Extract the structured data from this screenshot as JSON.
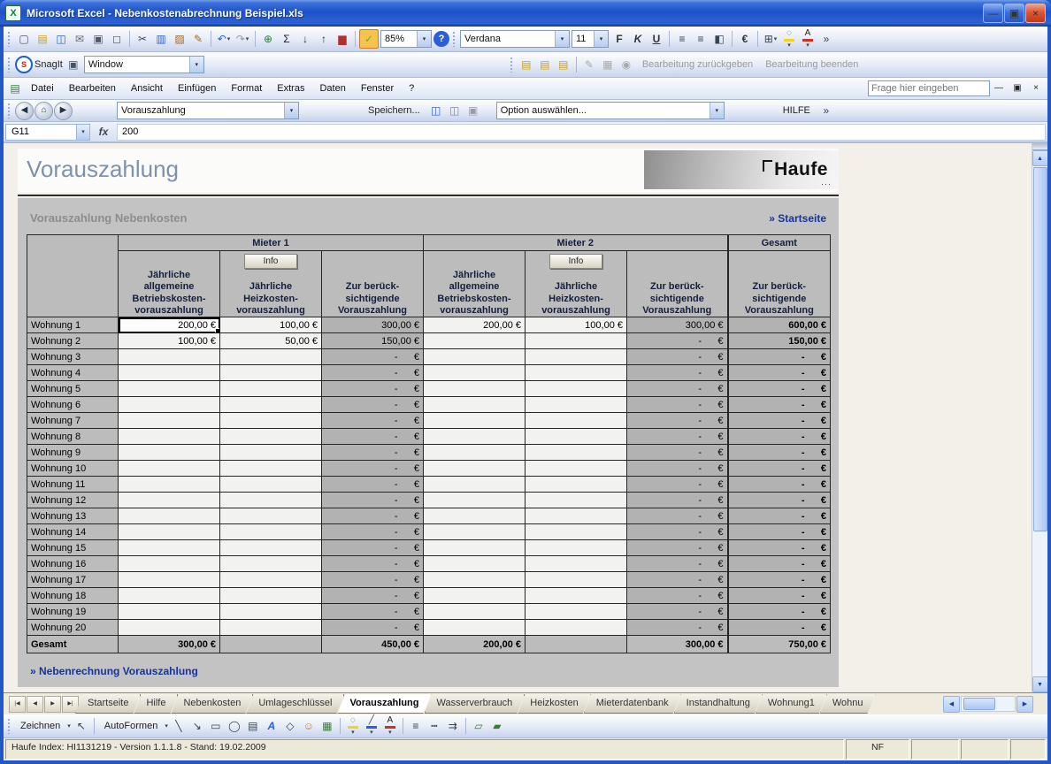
{
  "window": {
    "title": "Microsoft Excel - Nebenkostenabrechnung Beispiel.xls"
  },
  "menus": [
    "Datei",
    "Bearbeiten",
    "Ansicht",
    "Einfügen",
    "Format",
    "Extras",
    "Daten",
    "Fenster",
    "?"
  ],
  "question_placeholder": "Frage hier eingeben",
  "snagit": {
    "label": "SnagIt",
    "profile": "Window"
  },
  "addin_buttons": {
    "b1": "Bearbeitung zurückgeben",
    "b2": "Bearbeitung beenden"
  },
  "custom": {
    "nav_combo": "Vorauszahlung",
    "save_label": "Speichern...",
    "option_combo": "Option auswählen...",
    "help_label": "HILFE"
  },
  "format": {
    "font": "Verdana",
    "size": "11",
    "zoom": "85%"
  },
  "formula": {
    "name_box": "G11",
    "value": "200"
  },
  "content": {
    "page_title": "Vorauszahlung",
    "logo_text": "Haufe",
    "section_title": "Vorauszahlung Nebenkosten",
    "startseite_link": "» Startseite",
    "footer_link": "» Nebenrechnung Vorauszahlung"
  },
  "table": {
    "groups": [
      "Mieter 1",
      "Mieter 2",
      "Gesamt"
    ],
    "info_button": "Info",
    "col_headers": [
      "Jährliche\nallgemeine\nBetriebskosten-\nvorauszahlung",
      "Jährliche\nHeizkosten-\nvorauszahlung",
      "Zur berück-\nsichtigende\nVorauszahlung",
      "Jährliche\nallgemeine\nBetriebskosten-\nvorauszahlung",
      "Jährliche\nHeizkosten-\nvorauszahlung",
      "Zur berück-\nsichtigende\nVorauszahlung",
      "Zur berück-\nsichtigende\nVorauszahlung"
    ],
    "rows": [
      {
        "label": "Wohnung 1",
        "values": [
          "200,00 €",
          "100,00 €",
          "300,00 €",
          "200,00 €",
          "100,00 €",
          "300,00 €",
          "600,00 €"
        ]
      },
      {
        "label": "Wohnung 2",
        "values": [
          "100,00 €",
          "50,00 €",
          "150,00 €",
          "",
          "",
          "-      €",
          "150,00 €"
        ]
      },
      {
        "label": "Wohnung 3",
        "values": [
          "",
          "",
          "-      €",
          "",
          "",
          "-      €",
          "-      €"
        ]
      },
      {
        "label": "Wohnung 4",
        "values": [
          "",
          "",
          "-      €",
          "",
          "",
          "-      €",
          "-      €"
        ]
      },
      {
        "label": "Wohnung 5",
        "values": [
          "",
          "",
          "-      €",
          "",
          "",
          "-      €",
          "-      €"
        ]
      },
      {
        "label": "Wohnung 6",
        "values": [
          "",
          "",
          "-      €",
          "",
          "",
          "-      €",
          "-      €"
        ]
      },
      {
        "label": "Wohnung 7",
        "values": [
          "",
          "",
          "-      €",
          "",
          "",
          "-      €",
          "-      €"
        ]
      },
      {
        "label": "Wohnung 8",
        "values": [
          "",
          "",
          "-      €",
          "",
          "",
          "-      €",
          "-      €"
        ]
      },
      {
        "label": "Wohnung 9",
        "values": [
          "",
          "",
          "-      €",
          "",
          "",
          "-      €",
          "-      €"
        ]
      },
      {
        "label": "Wohnung 10",
        "values": [
          "",
          "",
          "-      €",
          "",
          "",
          "-      €",
          "-      €"
        ]
      },
      {
        "label": "Wohnung 11",
        "values": [
          "",
          "",
          "-      €",
          "",
          "",
          "-      €",
          "-      €"
        ]
      },
      {
        "label": "Wohnung 12",
        "values": [
          "",
          "",
          "-      €",
          "",
          "",
          "-      €",
          "-      €"
        ]
      },
      {
        "label": "Wohnung 13",
        "values": [
          "",
          "",
          "-      €",
          "",
          "",
          "-      €",
          "-      €"
        ]
      },
      {
        "label": "Wohnung 14",
        "values": [
          "",
          "",
          "-      €",
          "",
          "",
          "-      €",
          "-      €"
        ]
      },
      {
        "label": "Wohnung 15",
        "values": [
          "",
          "",
          "-      €",
          "",
          "",
          "-      €",
          "-      €"
        ]
      },
      {
        "label": "Wohnung 16",
        "values": [
          "",
          "",
          "-      €",
          "",
          "",
          "-      €",
          "-      €"
        ]
      },
      {
        "label": "Wohnung 17",
        "values": [
          "",
          "",
          "-      €",
          "",
          "",
          "-      €",
          "-      €"
        ]
      },
      {
        "label": "Wohnung 18",
        "values": [
          "",
          "",
          "-      €",
          "",
          "",
          "-      €",
          "-      €"
        ]
      },
      {
        "label": "Wohnung 19",
        "values": [
          "",
          "",
          "-      €",
          "",
          "",
          "-      €",
          "-      €"
        ]
      },
      {
        "label": "Wohnung 20",
        "values": [
          "",
          "",
          "-      €",
          "",
          "",
          "-      €",
          "-      €"
        ]
      }
    ],
    "total_row": {
      "label": "Gesamt",
      "values": [
        "300,00 €",
        "",
        "450,00 €",
        "200,00 €",
        "",
        "300,00 €",
        "750,00 €"
      ]
    }
  },
  "tabs": [
    "Startseite",
    "Hilfe",
    "Nebenkosten",
    "Umlageschlüssel",
    "Vorauszahlung",
    "Wasserverbrauch",
    "Heizkosten",
    "Mieterdatenbank",
    "Instandhaltung",
    "Wohnung1",
    "Wohnu"
  ],
  "active_tab": "Vorauszahlung",
  "drawing_labels": {
    "zeichnen": "Zeichnen",
    "autoformen": "AutoFormen"
  },
  "status": {
    "left": "Haufe Index: HI1131219 - Version 1.1.1.8 - Stand: 19.02.2009",
    "nf": "NF"
  },
  "colors": {
    "accent_blue": "#16339e",
    "panel_gray": "#c3c3c3",
    "computed_gray": "#b2b2b2",
    "header_gray": "#bcbcbc",
    "titlebar_blue": "#1d51c8"
  },
  "toolbars": {
    "titlebar_buttons": [
      {
        "n": "minimize-button",
        "g": "—",
        "cls": "winbtn"
      },
      {
        "n": "restore-button",
        "g": "▣",
        "cls": "winbtn"
      },
      {
        "n": "close-button",
        "g": "×",
        "cls": "winbtn close"
      }
    ],
    "standard": [
      {
        "n": "new-icon",
        "g": "▢",
        "fg": "#556"
      },
      {
        "n": "open-icon",
        "g": "▤",
        "fg": "#c9a227"
      },
      {
        "n": "save-icon",
        "g": "◫",
        "fg": "#2a5fd8"
      },
      {
        "n": "mail-icon",
        "g": "✉",
        "fg": "#667"
      },
      {
        "n": "print-icon",
        "g": "▣",
        "fg": "#556"
      },
      {
        "n": "print-preview-icon",
        "g": "◻",
        "fg": "#556"
      },
      {
        "sep": true
      },
      {
        "n": "cut-icon",
        "g": "✂",
        "fg": "#445"
      },
      {
        "n": "copy-icon",
        "g": "▥",
        "fg": "#2a5fd8"
      },
      {
        "n": "paste-icon",
        "g": "▨",
        "fg": "#a06a28"
      },
      {
        "n": "format-painter-icon",
        "g": "✎",
        "fg": "#a06a28"
      },
      {
        "sep": true
      },
      {
        "n": "undo-icon",
        "g": "↶",
        "fg": "#2a5fd8",
        "dd": true
      },
      {
        "n": "redo-icon",
        "g": "↷",
        "fg": "#99a",
        "dd": true
      },
      {
        "sep": true
      },
      {
        "n": "insert-hyperlink-icon",
        "g": "⊕",
        "fg": "#2a7a3a"
      },
      {
        "n": "autosum-icon",
        "g": "Σ",
        "fg": "#223"
      },
      {
        "n": "sort-ascending-icon",
        "g": "↓",
        "fg": "#234"
      },
      {
        "n": "sort-descending-icon",
        "g": "↑",
        "fg": "#234"
      },
      {
        "n": "chart-wizard-icon",
        "g": "▆",
        "fg": "#b03030"
      },
      {
        "sep": true
      },
      {
        "n": "haufe-recalc-icon",
        "g": "✓",
        "fg": "#7a2",
        "cls": "hl"
      }
    ],
    "standard_after_zoom": [
      {
        "n": "help-icon",
        "g": "?",
        "cls": "round-blue"
      }
    ],
    "formatting": [
      {
        "n": "bold-icon",
        "g": "F",
        "cls": "b"
      },
      {
        "n": "italic-icon",
        "g": "K",
        "cls": "i"
      },
      {
        "n": "underline-icon",
        "g": "U",
        "cls": "u"
      },
      {
        "sep": true
      },
      {
        "n": "align-left-icon",
        "g": "≡",
        "fg": "#345"
      },
      {
        "n": "align-center-icon",
        "g": "≡",
        "fg": "#345"
      },
      {
        "n": "merge-center-icon",
        "g": "◧",
        "fg": "#345"
      },
      {
        "sep": true
      },
      {
        "n": "euro-icon",
        "g": "€",
        "cls": "b"
      },
      {
        "sep": true
      },
      {
        "n": "borders-icon",
        "g": "⊞",
        "fg": "#345",
        "dd": true
      },
      {
        "n": "fill-color-icon",
        "g": "◌",
        "fg": "#345",
        "bar": "#f2d41c",
        "dd": true
      },
      {
        "n": "font-color-icon",
        "g": "A",
        "fg": "#222",
        "bar": "#d03020",
        "dd": true
      },
      {
        "n": "toolbar-options-icon",
        "g": "»",
        "fg": "#345"
      }
    ],
    "snagit_left": [
      {
        "n": "snagit-logo-icon",
        "g": "S",
        "cls": "round-snag"
      }
    ],
    "snagit_capture": [
      {
        "n": "capture-window-icon",
        "g": "▣",
        "fg": "#456"
      }
    ],
    "addin": [
      {
        "n": "addin-doc1-icon",
        "g": "▤",
        "fg": "#c9a227"
      },
      {
        "n": "addin-doc2-icon",
        "g": "▤",
        "fg": "#c9a227"
      },
      {
        "n": "addin-doc3-icon",
        "g": "▤",
        "fg": "#c9a227"
      },
      {
        "sep": true
      },
      {
        "n": "addin-edit-icon",
        "g": "✎",
        "fg": "#aaa"
      },
      {
        "n": "addin-grid-icon",
        "g": "▦",
        "fg": "#aaa"
      },
      {
        "n": "addin-info-icon",
        "g": "◉",
        "fg": "#aaa"
      }
    ],
    "workbook_buttons": [
      {
        "n": "workbook-minimize-button",
        "g": "—",
        "cls": "winbtn2"
      },
      {
        "n": "workbook-restore-button",
        "g": "▣",
        "cls": "winbtn2"
      },
      {
        "n": "workbook-close-button",
        "g": "×",
        "cls": "winbtn2"
      }
    ],
    "menubar_icon": [
      {
        "n": "workbook-icon",
        "g": "▤",
        "fg": "#3a7a3a"
      }
    ],
    "custom_nav": [
      {
        "n": "back-icon",
        "g": "◀",
        "cls": "round"
      },
      {
        "n": "home-icon",
        "g": "⌂",
        "cls": "round"
      },
      {
        "n": "forward-icon",
        "g": "▶",
        "cls": "round"
      }
    ],
    "custom_mid": [
      {
        "n": "save-small-icon",
        "g": "◫",
        "fg": "#2a5fd8"
      },
      {
        "n": "save-as-icon",
        "g": "◫",
        "fg": "#889"
      },
      {
        "n": "print-small-icon",
        "g": "▣",
        "fg": "#99a"
      }
    ],
    "custom_end": [
      {
        "n": "toolbar-options-icon",
        "g": "»",
        "fg": "#345"
      }
    ],
    "tab_nav": [
      {
        "n": "first-sheet-button",
        "g": "|◀"
      },
      {
        "n": "prev-sheet-button",
        "g": "◀"
      },
      {
        "n": "next-sheet-button",
        "g": "▶"
      },
      {
        "n": "last-sheet-button",
        "g": "▶|"
      }
    ],
    "drawing": [
      {
        "n": "select-objects-icon",
        "g": "↖",
        "fg": "#345"
      },
      {
        "sep": true
      }
    ],
    "drawing_shapes": [
      {
        "n": "line-icon",
        "g": "╲",
        "fg": "#345"
      },
      {
        "n": "arrow-icon",
        "g": "↘",
        "fg": "#345"
      },
      {
        "n": "rectangle-icon",
        "g": "▭",
        "fg": "#345"
      },
      {
        "n": "oval-icon",
        "g": "◯",
        "fg": "#345"
      },
      {
        "n": "textbox-icon",
        "g": "▤",
        "fg": "#345"
      },
      {
        "n": "wordart-icon",
        "g": "A",
        "cls": "i",
        "fg": "#2a5fd8"
      },
      {
        "n": "diagram-icon",
        "g": "◇",
        "fg": "#345"
      },
      {
        "n": "clipart-icon",
        "g": "☺",
        "fg": "#b58a2a"
      },
      {
        "n": "picture-icon",
        "g": "▦",
        "fg": "#3a7a3a"
      },
      {
        "sep": true
      },
      {
        "n": "fill-color-icon",
        "g": "◌",
        "fg": "#345",
        "bar": "#f2d41c",
        "dd": true
      },
      {
        "n": "line-color-icon",
        "g": "╱",
        "fg": "#345",
        "bar": "#2a5fd8",
        "dd": true
      },
      {
        "n": "font-color-icon",
        "g": "A",
        "fg": "#222",
        "bar": "#d03020",
        "dd": true
      },
      {
        "sep": true
      },
      {
        "n": "line-style-icon",
        "g": "≡",
        "fg": "#345"
      },
      {
        "n": "dash-style-icon",
        "g": "┅",
        "fg": "#345"
      },
      {
        "n": "arrow-style-icon",
        "g": "⇉",
        "fg": "#345"
      },
      {
        "sep": true
      },
      {
        "n": "shadow-style-icon",
        "g": "▱",
        "fg": "#3a7a3a"
      },
      {
        "n": "threed-style-icon",
        "g": "▰",
        "fg": "#3a7a3a"
      }
    ]
  }
}
